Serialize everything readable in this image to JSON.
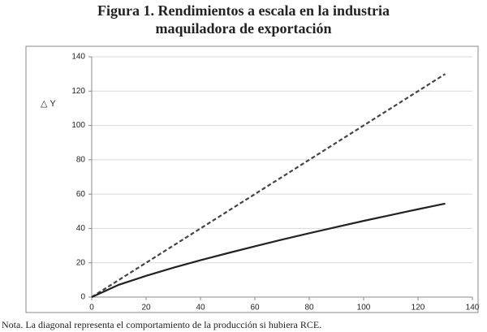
{
  "chart_data": {
    "type": "line",
    "title": [
      "Figura 1. Rendimientos a escala en la industria",
      "maquiladora de exportación"
    ],
    "y_label": "△ Y",
    "note": "Nota. La diagonal representa el comportamiento de la producción si hubiera RCE.",
    "x": [
      0,
      10,
      20,
      30,
      40,
      50,
      60,
      70,
      80,
      90,
      100,
      110,
      120,
      130
    ],
    "series": [
      {
        "color": "#444444",
        "dash": true,
        "values": [
          0,
          10,
          20,
          30,
          40,
          50,
          60,
          70,
          80,
          90,
          100,
          110,
          120,
          130
        ]
      },
      {
        "color": "#222222",
        "dash": false,
        "values": [
          0,
          7.2,
          12.4,
          17.1,
          21.5,
          25.6,
          29.6,
          33.5,
          37.2,
          40.8,
          44.4,
          47.8,
          51.2,
          54.5
        ]
      }
    ],
    "xlim": [
      0,
      140
    ],
    "xticks": [
      0,
      20,
      40,
      60,
      80,
      100,
      120,
      140
    ],
    "ylim": [
      0,
      140
    ],
    "yticks": [
      0,
      20,
      40,
      60,
      80,
      100,
      120,
      140
    ],
    "grid": true
  }
}
